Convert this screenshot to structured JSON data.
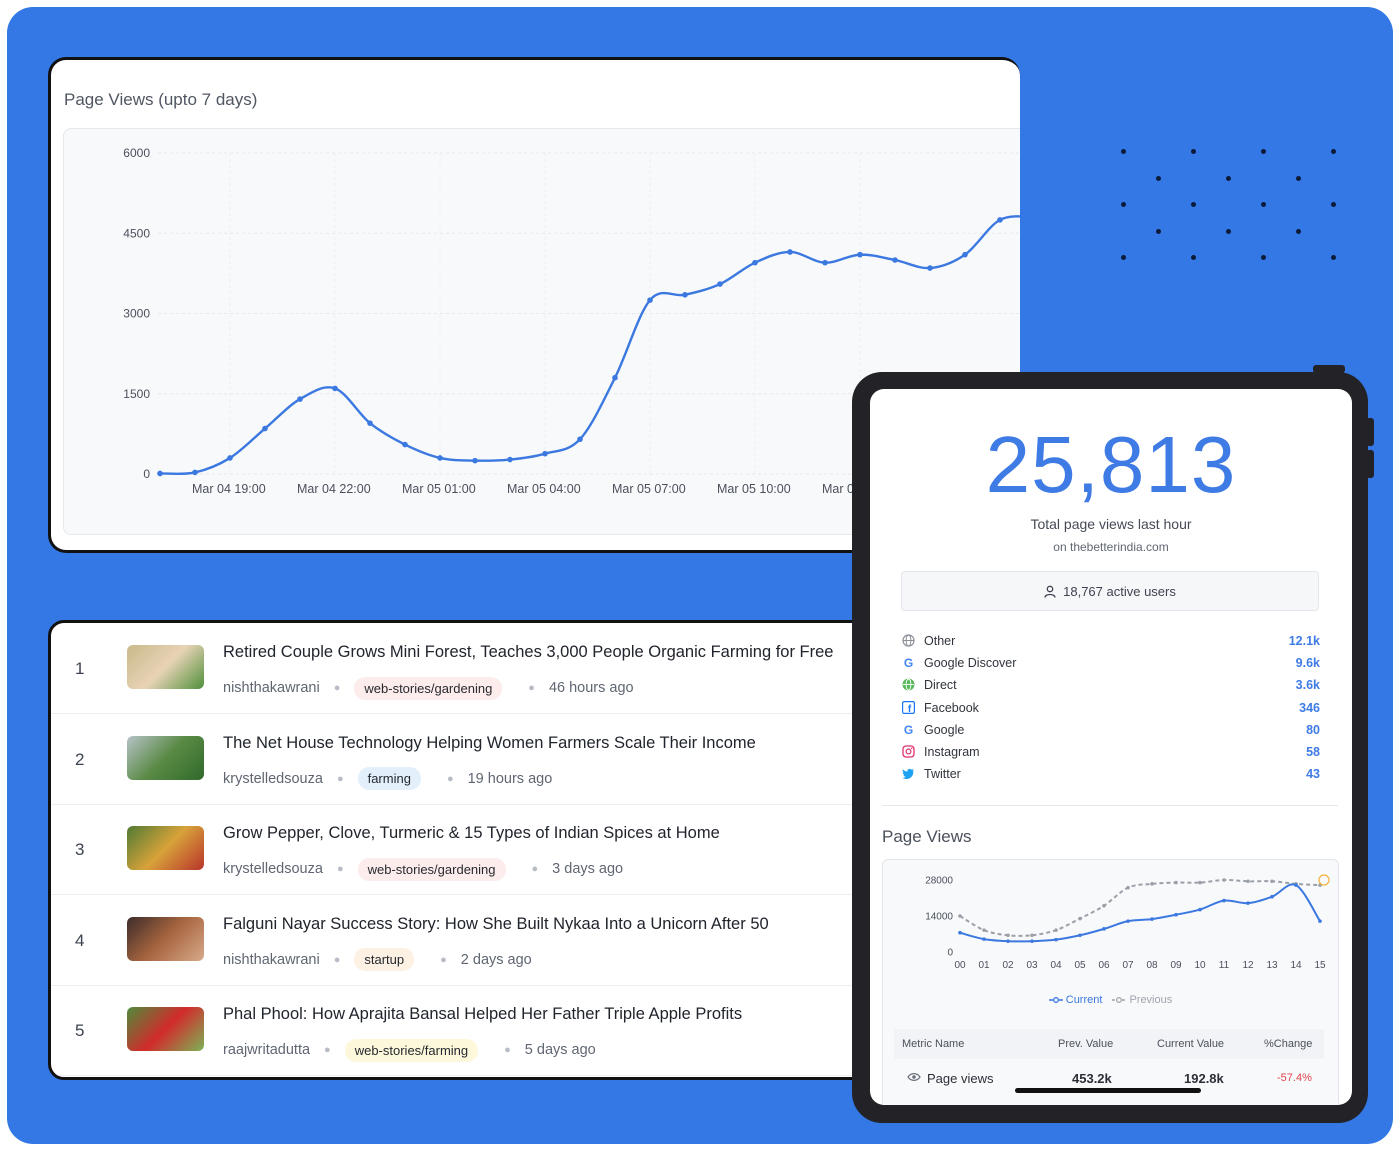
{
  "top_chart": {
    "title": "Page Views (upto 7 days)",
    "chart_data": {
      "type": "line",
      "ylim": [
        0,
        6000
      ],
      "yticks": [
        "6000",
        "4500",
        "3000",
        "1500",
        "0"
      ],
      "xticks": [
        "Mar 04 19:00",
        "Mar 04 22:00",
        "Mar 05 01:00",
        "Mar 05 04:00",
        "Mar 05 07:00",
        "Mar 05 10:00",
        "Mar 0"
      ],
      "series": [
        {
          "values": [
            10,
            30,
            300,
            850,
            1400,
            1600,
            950,
            550,
            300,
            250,
            270,
            380,
            650,
            1800,
            3250,
            3350,
            3550,
            3950,
            4150,
            3950,
            4100,
            4000,
            3850,
            4100,
            4750,
            4800
          ]
        }
      ],
      "color": "#3b78e0"
    }
  },
  "articles": [
    {
      "rank": "1",
      "title": "Retired Couple Grows Mini Forest, Teaches 3,000 People Organic Farming for Free",
      "author": "nishthakawrani",
      "tag": "web-stories/gardening",
      "tag_color": "#fdecec",
      "time": "46 hours ago",
      "thumb_colors": [
        "#c9b98b",
        "#e8d3b5",
        "#4e8f3a"
      ]
    },
    {
      "rank": "2",
      "title": "The Net House Technology Helping Women Farmers Scale Their Income",
      "author": "krystelledsouza",
      "tag": "farming",
      "tag_color": "#e3f0fb",
      "time": "19 hours ago",
      "thumb_colors": [
        "#b6c3c8",
        "#5a8a45",
        "#2f6a2b"
      ]
    },
    {
      "rank": "3",
      "title": "Grow Pepper, Clove, Turmeric & 15 Types of Indian Spices at Home",
      "author": "krystelledsouza",
      "tag": "web-stories/gardening",
      "tag_color": "#fdecec",
      "time": "3 days ago",
      "thumb_colors": [
        "#4f7a33",
        "#d8a23a",
        "#b8342a"
      ]
    },
    {
      "rank": "4",
      "title": "Falguni Nayar Success Story: How She Built Nykaa Into a Unicorn After 50",
      "author": "nishthakawrani",
      "tag": "startup",
      "tag_color": "#fdf1e4",
      "time": "2 days ago",
      "thumb_colors": [
        "#3d2c2a",
        "#a8663f",
        "#d7a98b"
      ]
    },
    {
      "rank": "5",
      "title": "Phal Phool: How Aprajita Bansal Helped Her Father Triple Apple Profits",
      "author": "raajwritadutta",
      "tag": "web-stories/farming",
      "tag_color": "#fdf8dc",
      "time": "5 days ago",
      "thumb_colors": [
        "#4e8c3a",
        "#d22b2b",
        "#7cb356"
      ]
    }
  ],
  "tablet": {
    "total": "25,813",
    "total_label": "Total page views last hour",
    "site": "on thebetterindia.com",
    "active_users": "18,767 active users",
    "sources": [
      {
        "name": "Other",
        "value": "12.1k",
        "icon": "globe-icon",
        "color": "#8a8f98"
      },
      {
        "name": "Google Discover",
        "value": "9.6k",
        "icon": "google-icon",
        "color": "#4285f4"
      },
      {
        "name": "Direct",
        "value": "3.6k",
        "icon": "direct-icon",
        "color": "#5cb85c"
      },
      {
        "name": "Facebook",
        "value": "346",
        "icon": "facebook-icon",
        "color": "#1877f2"
      },
      {
        "name": "Google",
        "value": "80",
        "icon": "google-icon",
        "color": "#4285f4"
      },
      {
        "name": "Instagram",
        "value": "58",
        "icon": "instagram-icon",
        "color": "#e1306c"
      },
      {
        "name": "Twitter",
        "value": "43",
        "icon": "twitter-icon",
        "color": "#1da1f2"
      }
    ],
    "page_views_title": "Page Views",
    "mini_chart": {
      "chart_data": {
        "type": "line",
        "ylim": [
          0,
          28000
        ],
        "yticks": [
          "28000",
          "14000",
          "0"
        ],
        "categories": [
          "00",
          "01",
          "02",
          "03",
          "04",
          "05",
          "06",
          "07",
          "08",
          "09",
          "10",
          "11",
          "12",
          "13",
          "14",
          "15"
        ],
        "series": [
          {
            "name": "Current",
            "values": [
              7500,
              5000,
              4200,
              4200,
              4800,
              6500,
              9000,
              12000,
              12800,
              14500,
              16500,
              20000,
              19000,
              21500,
              26000,
              12000
            ],
            "color": "#3b78e0"
          },
          {
            "name": "Previous",
            "values": [
              14000,
              8500,
              6500,
              6500,
              8500,
              13000,
              18000,
              25000,
              26500,
              27000,
              27000,
              28000,
              27500,
              27500,
              26500,
              26000
            ],
            "color": "#9aa0a8"
          }
        ]
      }
    },
    "table": {
      "headers": [
        "Metric Name",
        "Prev. Value",
        "Current Value",
        "%Change"
      ],
      "row": {
        "metric": "Page views",
        "prev": "453.2k",
        "current": "192.8k",
        "change": "-57.4%"
      }
    }
  }
}
